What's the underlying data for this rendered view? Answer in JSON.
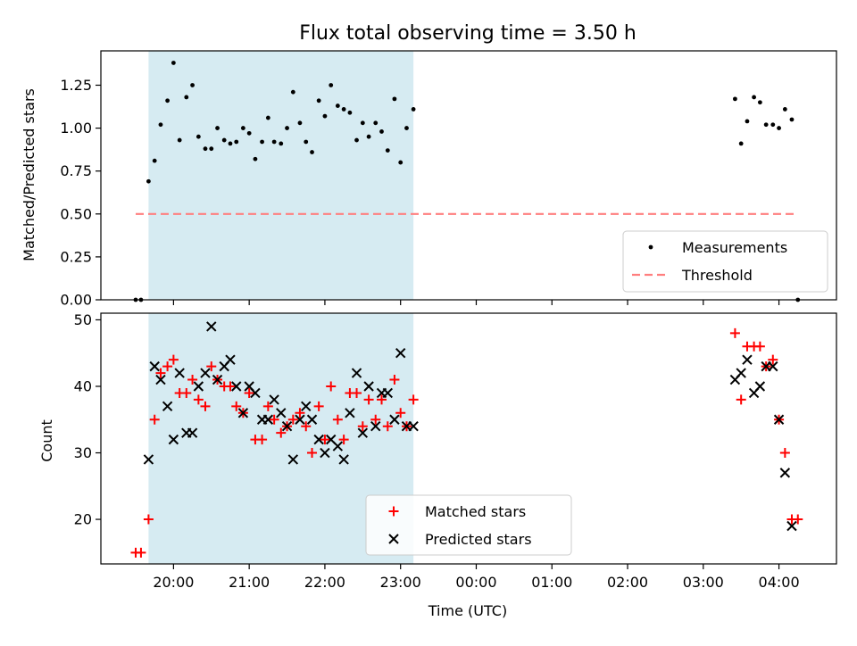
{
  "chart_data": [
    {
      "type": "scatter",
      "title": "Flux total observing time = 3.50 h",
      "ylabel": "Matched/Predicted stars",
      "xlabel": "",
      "x_unit": "hours_utc",
      "xlim": [
        19.04,
        28.76
      ],
      "ylim": [
        0,
        1.45
      ],
      "yticks": [
        0.0,
        0.25,
        0.5,
        0.75,
        1.0,
        1.25
      ],
      "ytick_labels": [
        "0.00",
        "0.25",
        "0.50",
        "0.75",
        "1.00",
        "1.25"
      ],
      "shaded_interval": [
        19.67,
        23.17
      ],
      "legend": {
        "position": "lower-right",
        "entries": [
          "Measurements",
          "Threshold"
        ]
      },
      "series": [
        {
          "name": "Measurements",
          "marker": "dot",
          "color": "#000000",
          "points": [
            [
              19.5,
              0.0
            ],
            [
              19.57,
              0.0
            ],
            [
              19.67,
              0.69
            ],
            [
              19.75,
              0.81
            ],
            [
              19.83,
              1.02
            ],
            [
              19.92,
              1.16
            ],
            [
              20.0,
              1.38
            ],
            [
              20.08,
              0.93
            ],
            [
              20.17,
              1.18
            ],
            [
              20.25,
              1.25
            ],
            [
              20.33,
              0.95
            ],
            [
              20.42,
              0.88
            ],
            [
              20.5,
              0.88
            ],
            [
              20.58,
              1.0
            ],
            [
              20.67,
              0.93
            ],
            [
              20.75,
              0.91
            ],
            [
              20.83,
              0.92
            ],
            [
              20.92,
              1.0
            ],
            [
              21.0,
              0.97
            ],
            [
              21.08,
              0.82
            ],
            [
              21.17,
              0.92
            ],
            [
              21.25,
              1.06
            ],
            [
              21.33,
              0.92
            ],
            [
              21.42,
              0.91
            ],
            [
              21.5,
              1.0
            ],
            [
              21.58,
              1.21
            ],
            [
              21.67,
              1.03
            ],
            [
              21.75,
              0.92
            ],
            [
              21.83,
              0.86
            ],
            [
              21.92,
              1.16
            ],
            [
              22.0,
              1.07
            ],
            [
              22.08,
              1.25
            ],
            [
              22.17,
              1.13
            ],
            [
              22.25,
              1.11
            ],
            [
              22.33,
              1.09
            ],
            [
              22.42,
              0.93
            ],
            [
              22.5,
              1.03
            ],
            [
              22.58,
              0.95
            ],
            [
              22.67,
              1.03
            ],
            [
              22.75,
              0.98
            ],
            [
              22.83,
              0.87
            ],
            [
              22.92,
              1.17
            ],
            [
              23.0,
              0.8
            ],
            [
              23.08,
              1.0
            ],
            [
              23.17,
              1.11
            ],
            [
              27.42,
              1.17
            ],
            [
              27.5,
              0.91
            ],
            [
              27.58,
              1.04
            ],
            [
              27.67,
              1.18
            ],
            [
              27.75,
              1.15
            ],
            [
              27.83,
              1.02
            ],
            [
              27.92,
              1.02
            ],
            [
              28.0,
              1.0
            ],
            [
              28.08,
              1.11
            ],
            [
              28.17,
              1.05
            ],
            [
              28.25,
              0.0
            ]
          ]
        },
        {
          "name": "Threshold",
          "marker": "dashed-line",
          "color": "#ff7f7f",
          "points": [
            [
              19.5,
              0.5
            ],
            [
              28.25,
              0.5
            ]
          ]
        }
      ]
    },
    {
      "type": "scatter",
      "title": "",
      "ylabel": "Count",
      "xlabel": "Time (UTC)",
      "x_unit": "hours_utc",
      "xlim": [
        19.04,
        28.76
      ],
      "ylim": [
        13.3,
        51.0
      ],
      "yticks": [
        20,
        30,
        40,
        50
      ],
      "ytick_labels": [
        "20",
        "30",
        "40",
        "50"
      ],
      "xticks": [
        20,
        21,
        22,
        23,
        24,
        25,
        26,
        27,
        28
      ],
      "xtick_labels": [
        "20:00",
        "21:00",
        "22:00",
        "23:00",
        "00:00",
        "01:00",
        "02:00",
        "03:00",
        "04:00"
      ],
      "shaded_interval": [
        19.67,
        23.17
      ],
      "legend": {
        "position": "lower-center",
        "entries": [
          "Matched stars",
          "Predicted stars"
        ]
      },
      "series": [
        {
          "name": "Matched stars",
          "marker": "plus",
          "color": "#ff0000",
          "points": [
            [
              19.5,
              15
            ],
            [
              19.57,
              15
            ],
            [
              19.67,
              20
            ],
            [
              19.75,
              35
            ],
            [
              19.83,
              42
            ],
            [
              19.92,
              43
            ],
            [
              20.0,
              44
            ],
            [
              20.08,
              39
            ],
            [
              20.17,
              39
            ],
            [
              20.25,
              41
            ],
            [
              20.33,
              38
            ],
            [
              20.42,
              37
            ],
            [
              20.5,
              43
            ],
            [
              20.58,
              41
            ],
            [
              20.67,
              40
            ],
            [
              20.75,
              40
            ],
            [
              20.83,
              37
            ],
            [
              20.92,
              36
            ],
            [
              21.0,
              39
            ],
            [
              21.08,
              32
            ],
            [
              21.17,
              32
            ],
            [
              21.25,
              37
            ],
            [
              21.33,
              35
            ],
            [
              21.42,
              33
            ],
            [
              21.5,
              34
            ],
            [
              21.58,
              35
            ],
            [
              21.67,
              36
            ],
            [
              21.75,
              34
            ],
            [
              21.83,
              30
            ],
            [
              21.92,
              37
            ],
            [
              22.0,
              32
            ],
            [
              22.08,
              40
            ],
            [
              22.17,
              35
            ],
            [
              22.25,
              32
            ],
            [
              22.33,
              39
            ],
            [
              22.42,
              39
            ],
            [
              22.5,
              34
            ],
            [
              22.58,
              38
            ],
            [
              22.67,
              35
            ],
            [
              22.75,
              38
            ],
            [
              22.83,
              34
            ],
            [
              22.92,
              41
            ],
            [
              23.0,
              36
            ],
            [
              23.08,
              34
            ],
            [
              23.17,
              38
            ],
            [
              27.42,
              48
            ],
            [
              27.5,
              38
            ],
            [
              27.58,
              46
            ],
            [
              27.67,
              46
            ],
            [
              27.75,
              46
            ],
            [
              27.83,
              43
            ],
            [
              27.92,
              44
            ],
            [
              28.0,
              35
            ],
            [
              28.08,
              30
            ],
            [
              28.17,
              20
            ],
            [
              28.25,
              20
            ]
          ]
        },
        {
          "name": "Predicted stars",
          "marker": "x",
          "color": "#000000",
          "points": [
            [
              19.67,
              29
            ],
            [
              19.75,
              43
            ],
            [
              19.83,
              41
            ],
            [
              19.92,
              37
            ],
            [
              20.0,
              32
            ],
            [
              20.08,
              42
            ],
            [
              20.17,
              33
            ],
            [
              20.25,
              33
            ],
            [
              20.33,
              40
            ],
            [
              20.42,
              42
            ],
            [
              20.5,
              49
            ],
            [
              20.58,
              41
            ],
            [
              20.67,
              43
            ],
            [
              20.75,
              44
            ],
            [
              20.83,
              40
            ],
            [
              20.92,
              36
            ],
            [
              21.0,
              40
            ],
            [
              21.08,
              39
            ],
            [
              21.17,
              35
            ],
            [
              21.25,
              35
            ],
            [
              21.33,
              38
            ],
            [
              21.42,
              36
            ],
            [
              21.5,
              34
            ],
            [
              21.58,
              29
            ],
            [
              21.67,
              35
            ],
            [
              21.75,
              37
            ],
            [
              21.83,
              35
            ],
            [
              21.92,
              32
            ],
            [
              22.0,
              30
            ],
            [
              22.08,
              32
            ],
            [
              22.17,
              31
            ],
            [
              22.25,
              29
            ],
            [
              22.33,
              36
            ],
            [
              22.42,
              42
            ],
            [
              22.5,
              33
            ],
            [
              22.58,
              40
            ],
            [
              22.67,
              34
            ],
            [
              22.75,
              39
            ],
            [
              22.83,
              39
            ],
            [
              22.92,
              35
            ],
            [
              23.0,
              45
            ],
            [
              23.08,
              34
            ],
            [
              23.17,
              34
            ],
            [
              27.42,
              41
            ],
            [
              27.5,
              42
            ],
            [
              27.58,
              44
            ],
            [
              27.67,
              39
            ],
            [
              27.75,
              40
            ],
            [
              27.83,
              43
            ],
            [
              27.92,
              43
            ],
            [
              28.0,
              35
            ],
            [
              28.08,
              27
            ],
            [
              28.17,
              19
            ]
          ]
        }
      ]
    }
  ]
}
